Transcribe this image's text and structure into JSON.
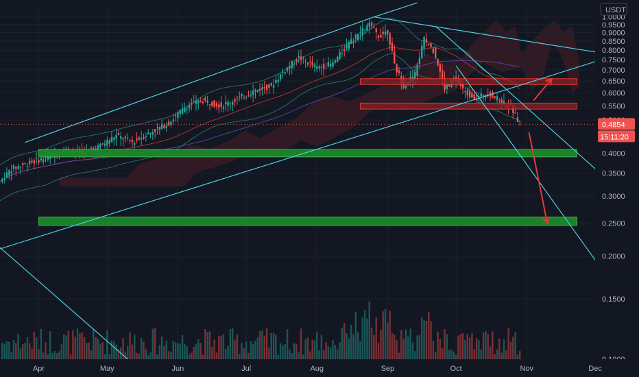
{
  "chart_data": {
    "type": "candlestick",
    "currency_label": "USDT",
    "price_axis": {
      "scale": "log",
      "range": [
        0.1,
        1.08
      ],
      "ticks": [
        "1.0000",
        "0.9500",
        "0.9000",
        "0.8500",
        "0.8000",
        "0.7500",
        "0.7000",
        "0.6500",
        "0.6000",
        "0.5500",
        "0.5000",
        "0.4000",
        "0.3500",
        "0.3000",
        "0.2500",
        "0.2000",
        "0.1500",
        "0.1000"
      ]
    },
    "time_axis": {
      "range": [
        "2022-03-15",
        "2022-12-01"
      ],
      "ticks": [
        {
          "label": "Apr",
          "date": "2022-04-01"
        },
        {
          "label": "May",
          "date": "2022-05-01"
        },
        {
          "label": "Jun",
          "date": "2022-06-01"
        },
        {
          "label": "Jul",
          "date": "2022-07-01"
        },
        {
          "label": "Aug",
          "date": "2022-08-01"
        },
        {
          "label": "Sep",
          "date": "2022-09-01"
        },
        {
          "label": "Oct",
          "date": "2022-10-01"
        },
        {
          "label": "Nov",
          "date": "2022-11-01"
        },
        {
          "label": "Dec",
          "date": "2022-12-01"
        }
      ]
    },
    "price_path": [
      {
        "date": "2022-03-15",
        "price": 0.33
      },
      {
        "date": "2022-03-20",
        "price": 0.36
      },
      {
        "date": "2022-03-28",
        "price": 0.375
      },
      {
        "date": "2022-04-05",
        "price": 0.39
      },
      {
        "date": "2022-04-12",
        "price": 0.41
      },
      {
        "date": "2022-04-20",
        "price": 0.4
      },
      {
        "date": "2022-04-28",
        "price": 0.42
      },
      {
        "date": "2022-05-05",
        "price": 0.45
      },
      {
        "date": "2022-05-12",
        "price": 0.43
      },
      {
        "date": "2022-05-20",
        "price": 0.46
      },
      {
        "date": "2022-05-28",
        "price": 0.49
      },
      {
        "date": "2022-06-05",
        "price": 0.55
      },
      {
        "date": "2022-06-12",
        "price": 0.57
      },
      {
        "date": "2022-06-20",
        "price": 0.55
      },
      {
        "date": "2022-06-28",
        "price": 0.58
      },
      {
        "date": "2022-07-05",
        "price": 0.61
      },
      {
        "date": "2022-07-12",
        "price": 0.63
      },
      {
        "date": "2022-07-18",
        "price": 0.7
      },
      {
        "date": "2022-07-24",
        "price": 0.76
      },
      {
        "date": "2022-08-01",
        "price": 0.71
      },
      {
        "date": "2022-08-08",
        "price": 0.73
      },
      {
        "date": "2022-08-14",
        "price": 0.82
      },
      {
        "date": "2022-08-20",
        "price": 0.9
      },
      {
        "date": "2022-08-24",
        "price": 0.95
      },
      {
        "date": "2022-08-28",
        "price": 0.88
      },
      {
        "date": "2022-09-01",
        "price": 0.91
      },
      {
        "date": "2022-09-04",
        "price": 0.72
      },
      {
        "date": "2022-09-08",
        "price": 0.63
      },
      {
        "date": "2022-09-13",
        "price": 0.68
      },
      {
        "date": "2022-09-17",
        "price": 0.86
      },
      {
        "date": "2022-09-21",
        "price": 0.8
      },
      {
        "date": "2022-09-26",
        "price": 0.62
      },
      {
        "date": "2022-10-01",
        "price": 0.66
      },
      {
        "date": "2022-10-05",
        "price": 0.6
      },
      {
        "date": "2022-10-10",
        "price": 0.58
      },
      {
        "date": "2022-10-15",
        "price": 0.6
      },
      {
        "date": "2022-10-20",
        "price": 0.57
      },
      {
        "date": "2022-10-25",
        "price": 0.545
      },
      {
        "date": "2022-10-29",
        "price": 0.4854
      }
    ],
    "channel_lines": [
      {
        "from": {
          "date": "2022-03-15",
          "price": 0.21
        },
        "to": {
          "date": "2022-12-01",
          "price": 0.74
        }
      },
      {
        "from": {
          "date": "2022-03-26",
          "price": 0.43
        },
        "to": {
          "date": "2022-08-26",
          "price": 1.0
        }
      },
      {
        "from": {
          "date": "2022-08-26",
          "price": 1.0
        },
        "to": {
          "date": "2022-12-01",
          "price": 0.79
        }
      },
      {
        "from": {
          "date": "2022-03-15",
          "price": 0.212
        },
        "to": {
          "date": "2022-05-10",
          "price": 0.1
        }
      },
      {
        "from": {
          "date": "2022-09-22",
          "price": 0.94
        },
        "to": {
          "date": "2022-12-01",
          "price": 0.36
        }
      },
      {
        "from": {
          "date": "2022-10-01",
          "price": 0.72
        },
        "to": {
          "date": "2022-12-01",
          "price": 0.195
        }
      },
      {
        "from": {
          "date": "2022-08-26",
          "price": 1.0
        },
        "to": {
          "date": "2022-09-14",
          "price": 1.1
        }
      }
    ],
    "resistance_zones": [
      {
        "from": "2022-08-20",
        "to": "2022-11-23",
        "low": 0.635,
        "high": 0.66
      },
      {
        "from": "2022-08-20",
        "to": "2022-11-23",
        "low": 0.538,
        "high": 0.56
      }
    ],
    "support_zones": [
      {
        "from": "2022-04-01",
        "to": "2022-11-23",
        "low": 0.39,
        "high": 0.41
      },
      {
        "from": "2022-04-01",
        "to": "2022-11-23",
        "low": 0.246,
        "high": 0.26
      }
    ],
    "arrows": [
      {
        "from": {
          "date": "2022-11-04",
          "price": 0.57
        },
        "to": {
          "date": "2022-11-12",
          "price": 0.66
        }
      },
      {
        "from": {
          "date": "2022-11-02",
          "price": 0.46
        },
        "to": {
          "date": "2022-11-10",
          "price": 0.25
        }
      }
    ],
    "last_price": {
      "label": "0.4854",
      "value": 0.4854,
      "countdown": "15:11:20"
    }
  }
}
